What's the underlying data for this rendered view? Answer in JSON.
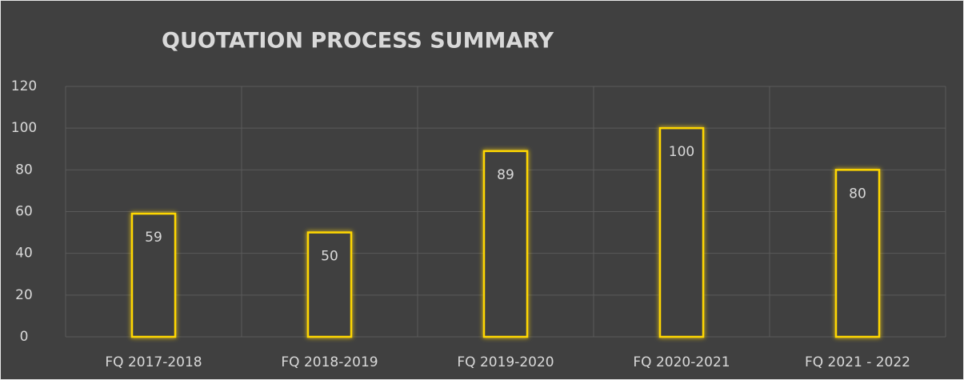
{
  "chart_data": {
    "type": "bar",
    "title": "QUOTATION  PROCESS SUMMARY",
    "categories": [
      "FQ 2017-2018",
      "FQ 2018-2019",
      "FQ 2019-2020",
      "FQ 2020-2021",
      "FQ 2021 - 2022"
    ],
    "values": [
      59,
      50,
      89,
      100,
      80
    ],
    "color": "#ffd700",
    "ylim": [
      0,
      120
    ],
    "yticks": [
      0,
      20,
      40,
      60,
      80,
      100,
      120
    ],
    "grid": true
  }
}
